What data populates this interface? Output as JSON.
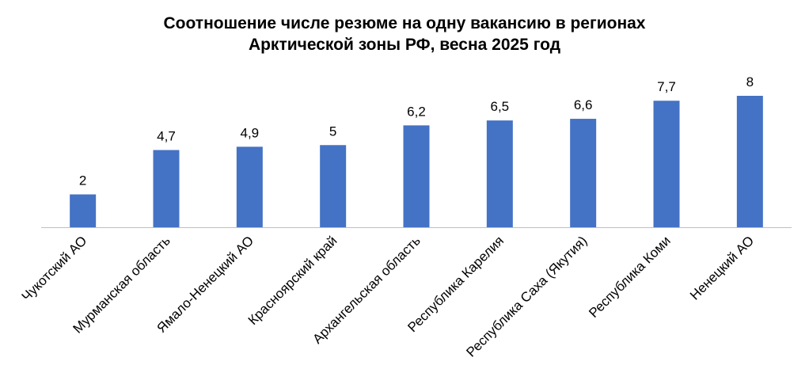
{
  "chart_data": {
    "type": "bar",
    "title_lines": [
      "Соотношение числе резюме на одну вакансию в регионах",
      "Арктической зоны РФ, весна 2025 год"
    ],
    "categories": [
      "Чукотский АО",
      "Мурманская область",
      "Ямало-Ненецкий АО",
      "Красноярский край",
      "Архангельская область",
      "Республика Карелия",
      "Республика Саха (Якутия)",
      "Республика Коми",
      "Ненецкий АО"
    ],
    "values": [
      2,
      4.7,
      4.9,
      5,
      6.2,
      6.5,
      6.6,
      7.7,
      8
    ],
    "value_labels": [
      "2",
      "4,7",
      "4,9",
      "5",
      "6,2",
      "6,5",
      "6,6",
      "7,7",
      "8"
    ],
    "ylim": [
      0,
      8.5
    ],
    "bar_color": "#4472C4",
    "axis_color": "#BFBFBF",
    "grid": false,
    "legend": "none"
  }
}
